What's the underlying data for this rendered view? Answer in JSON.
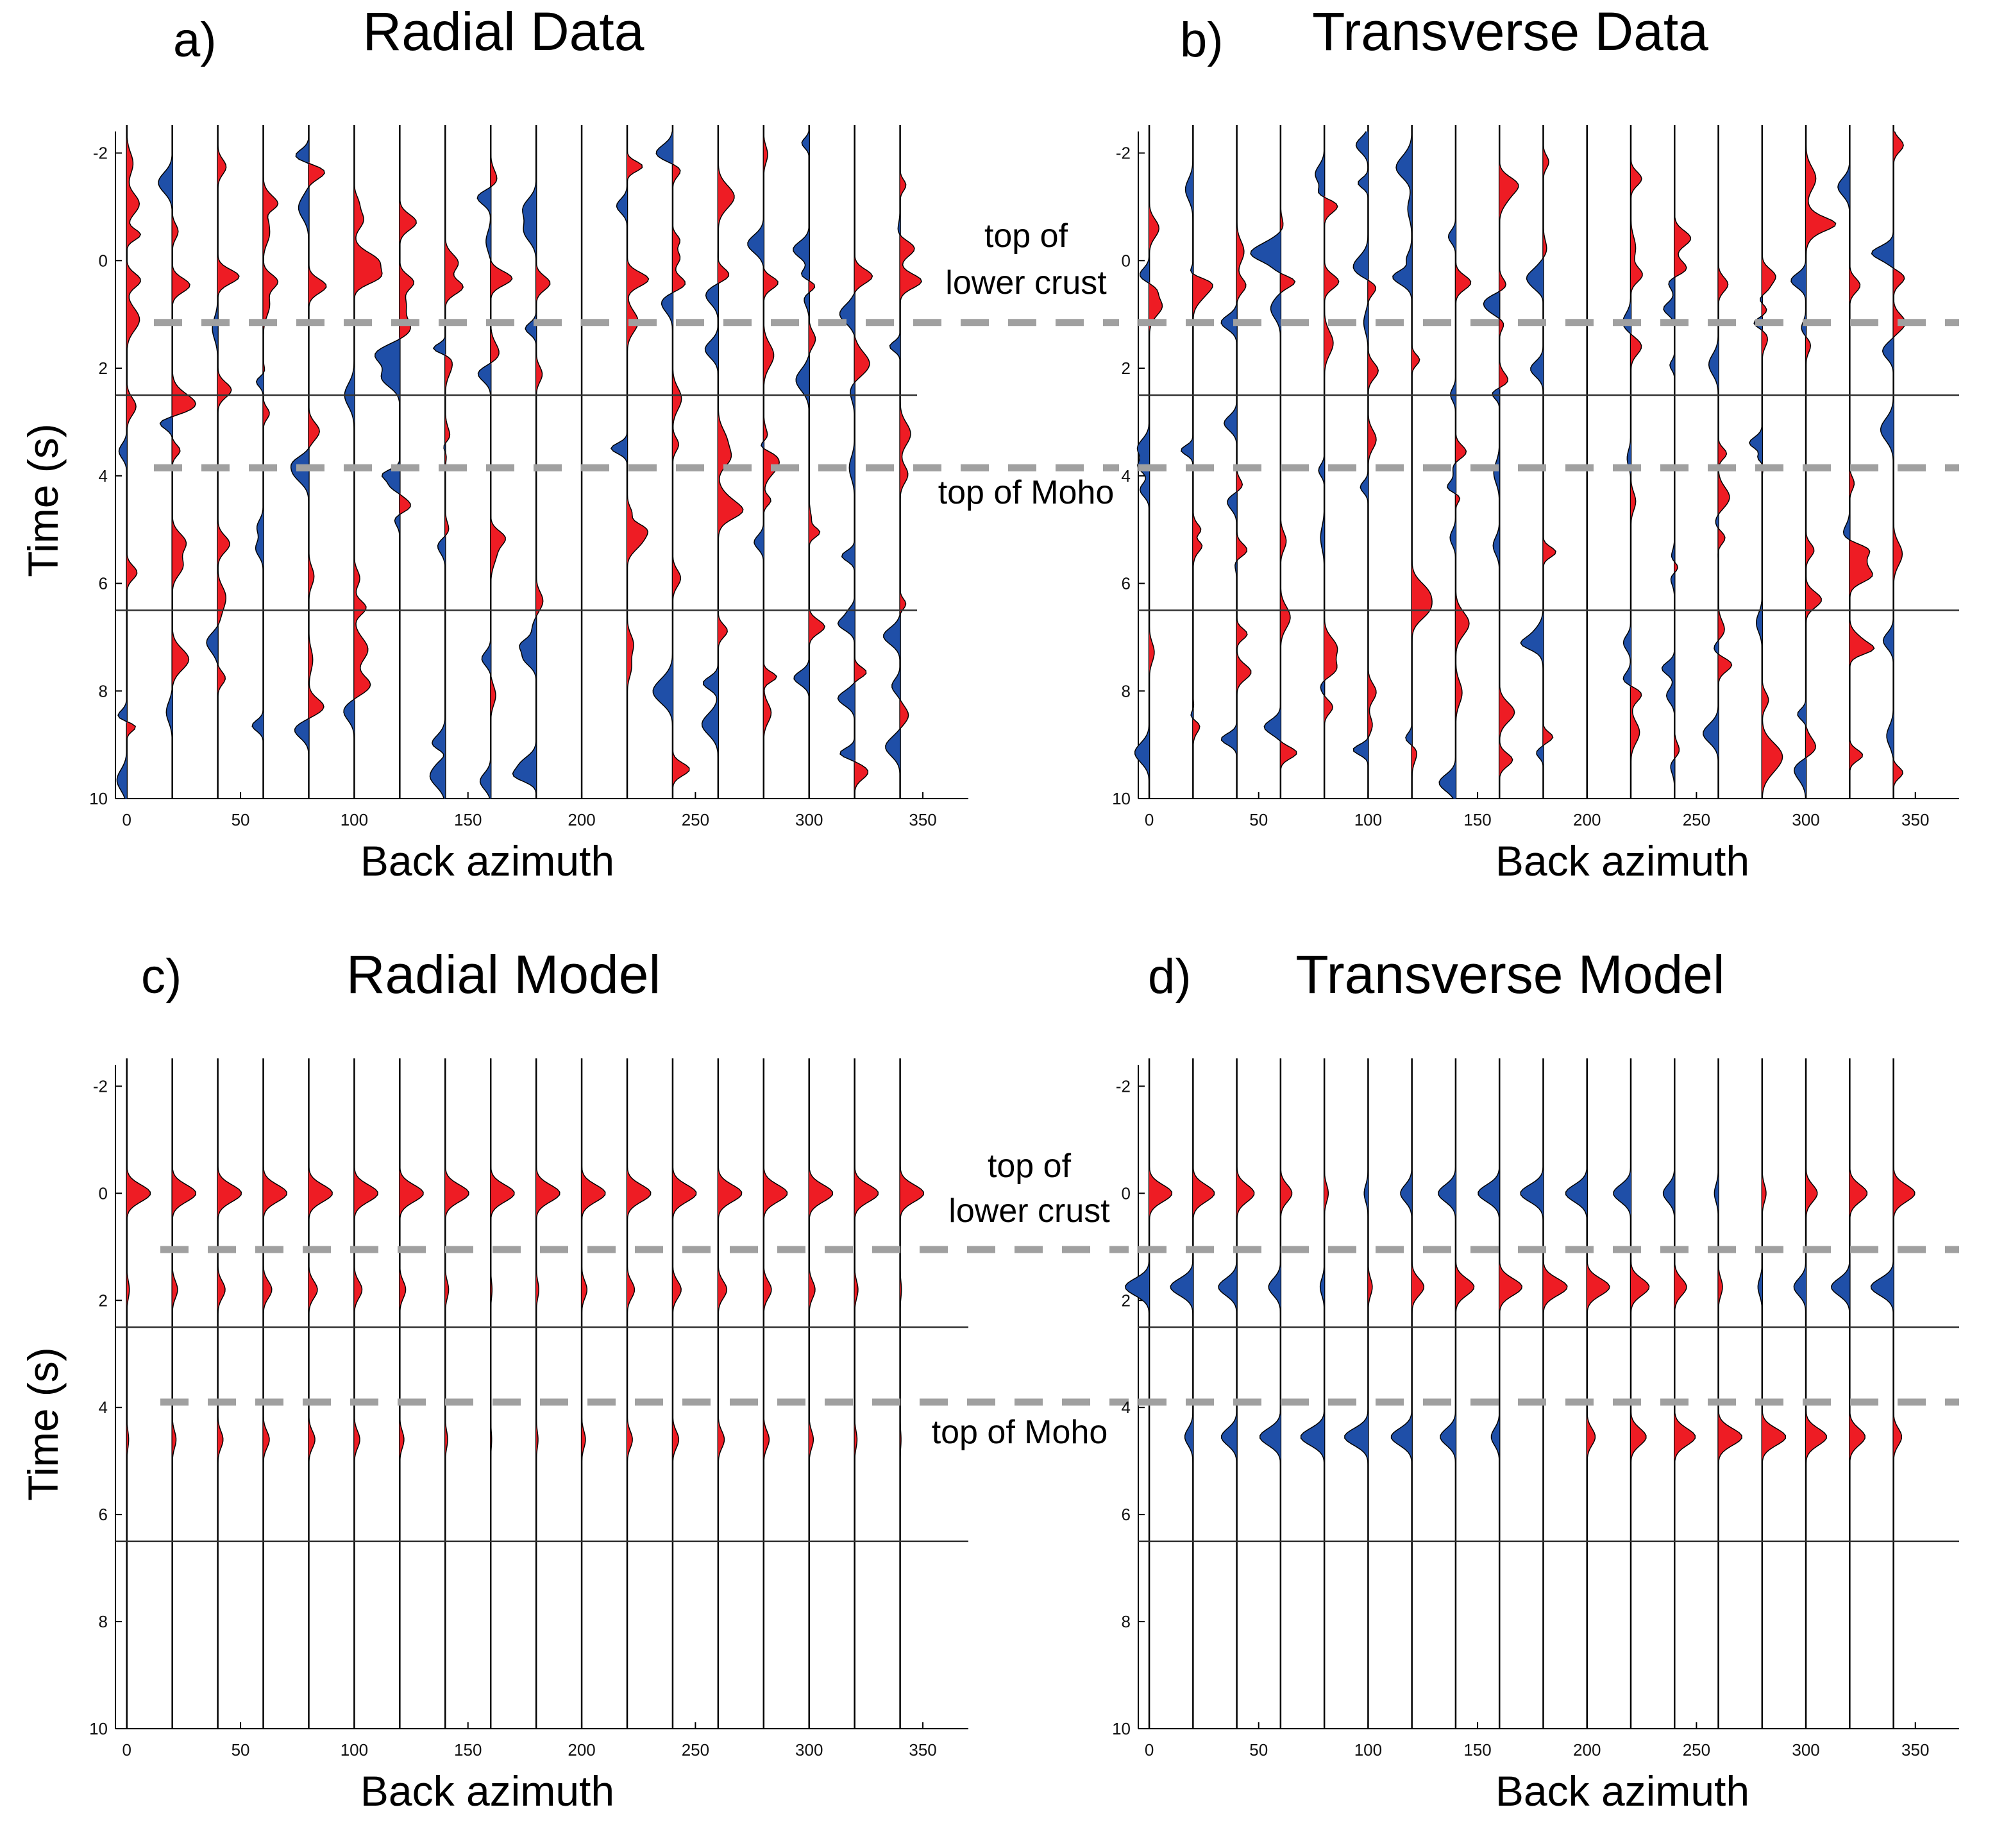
{
  "chart_data": [
    {
      "type": "wiggle",
      "panel": "a)",
      "title": "Radial Data",
      "xlabel": "Back azimuth",
      "ylabel": "Time (s)",
      "xlim": [
        -5,
        370
      ],
      "ylim": [
        -2.4,
        10
      ],
      "xticks": [
        0,
        50,
        100,
        150,
        200,
        250,
        300,
        350
      ],
      "yticks": [
        -2,
        0,
        2,
        4,
        6,
        8,
        10
      ],
      "traces": [
        0,
        20,
        40,
        60,
        80,
        100,
        120,
        140,
        160,
        180,
        200,
        220,
        240,
        260,
        280,
        300,
        320,
        340
      ],
      "empty_traces": [
        200
      ],
      "solid_lines_time": [
        2.5,
        6.5
      ],
      "dashed_lines_time": [
        1.15,
        3.85
      ],
      "annotations": [
        "top of",
        "lower crust",
        "top of Moho"
      ],
      "seed": 11
    },
    {
      "type": "wiggle",
      "panel": "b)",
      "title": "Transverse Data",
      "xlabel": "Back azimuth",
      "ylabel": "",
      "xlim": [
        -5,
        370
      ],
      "ylim": [
        -2.4,
        10
      ],
      "xticks": [
        0,
        50,
        100,
        150,
        200,
        250,
        300,
        350
      ],
      "yticks": [
        -2,
        0,
        2,
        4,
        6,
        8,
        10
      ],
      "traces": [
        0,
        20,
        40,
        60,
        80,
        100,
        120,
        140,
        160,
        180,
        200,
        220,
        240,
        260,
        280,
        300,
        320,
        340
      ],
      "empty_traces": [
        200
      ],
      "solid_lines_time": [
        2.5,
        6.5
      ],
      "dashed_lines_time": [
        1.15,
        3.85
      ],
      "annotations": [],
      "seed": 29
    },
    {
      "type": "wiggle",
      "panel": "c)",
      "title": "Radial Model",
      "xlabel": "Back azimuth",
      "ylabel": "Time (s)",
      "xlim": [
        -5,
        370
      ],
      "ylim": [
        -2.4,
        10
      ],
      "xticks": [
        0,
        50,
        100,
        150,
        200,
        250,
        300,
        350
      ],
      "yticks": [
        -2,
        0,
        2,
        4,
        6,
        8,
        10
      ],
      "traces": [
        0,
        20,
        40,
        60,
        80,
        100,
        120,
        140,
        160,
        180,
        200,
        220,
        240,
        260,
        280,
        300,
        320,
        340
      ],
      "solid_lines_time": [
        2.5,
        6.5
      ],
      "dashed_lines_time": [
        1.05,
        3.9
      ],
      "annotations": [
        "top of",
        "lower crust",
        "top of Moho"
      ],
      "pulses": [
        {
          "t": 0,
          "amp": 0.95
        },
        {
          "t": 1.8,
          "amp": 0.35
        },
        {
          "t": 4.6,
          "amp": 0.25
        }
      ]
    },
    {
      "type": "wiggle",
      "panel": "d)",
      "title": "Transverse Model",
      "xlabel": "Back azimuth",
      "ylabel": "",
      "xlim": [
        -5,
        370
      ],
      "ylim": [
        -2.4,
        10
      ],
      "xticks": [
        0,
        50,
        100,
        150,
        200,
        250,
        300,
        350
      ],
      "yticks": [
        -2,
        0,
        2,
        4,
        6,
        8,
        10
      ],
      "traces": [
        0,
        20,
        40,
        60,
        80,
        100,
        120,
        140,
        160,
        180,
        200,
        220,
        240,
        260,
        280,
        300,
        320,
        340
      ],
      "solid_lines_time": [
        2.5,
        6.5
      ],
      "dashed_lines_time": [
        1.05,
        3.9
      ],
      "annotations": [],
      "pulses": [
        {
          "t": 0,
          "amp": 0.95,
          "phase": 0
        },
        {
          "t": 1.75,
          "amp": 1.0,
          "phase": 180
        },
        {
          "t": 4.55,
          "amp": 1.0,
          "phase": 90
        }
      ]
    }
  ],
  "colors": {
    "positive": "#ee1c24",
    "negative": "#1f4fa8",
    "trace": "#000000",
    "grid_solid": "#333333",
    "grid_dashed": "#a0a0a0"
  }
}
